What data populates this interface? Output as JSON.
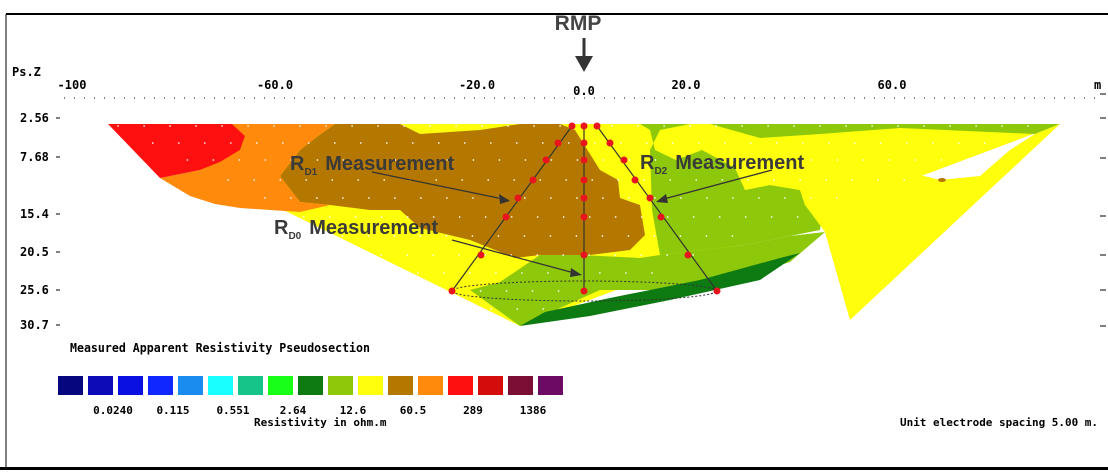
{
  "header": {
    "rmp_label": "RMP",
    "ps_z_label": "Ps.Z",
    "x_axis_right_unit": "m"
  },
  "x_axis": {
    "ticks": [
      "-100",
      "-60.0",
      "-20.0",
      "0.0",
      "20.0",
      "60.0"
    ]
  },
  "y_axis": {
    "ticks": [
      "2.56",
      "7.68",
      "15.4",
      "20.5",
      "25.6",
      "30.7"
    ]
  },
  "annotations": {
    "rd1_main": "R",
    "rd1_sub": "D1",
    "rd2_main": "R",
    "rd2_sub": "D2",
    "rd0_main": "R",
    "rd0_sub": "D0",
    "measurement": "Measurement"
  },
  "section_title": "Measured Apparent Resistivity Pseudosection",
  "legend": {
    "colors": [
      "#06067f",
      "#0b0bb8",
      "#0a10e2",
      "#1028ff",
      "#1a8cf0",
      "#19ffff",
      "#16c48a",
      "#18ff18",
      "#0e7a12",
      "#8ec80a",
      "#ffff0c",
      "#b47800",
      "#ff8a0c",
      "#ff1010",
      "#d40c0c",
      "#7c0e36",
      "#6c0a64"
    ],
    "labels": [
      "0.0240",
      "0.115",
      "0.551",
      "2.64",
      "12.6",
      "60.5",
      "289",
      "1386"
    ],
    "title": "Resistivity in ohm.m"
  },
  "footer_note": "Unit electrode spacing 5.00 m."
}
